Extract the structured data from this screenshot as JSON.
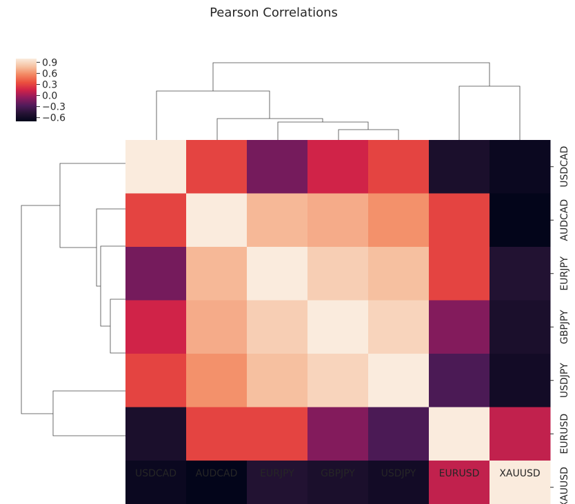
{
  "chart_data": {
    "type": "heatmap",
    "title": "Pearson Correlations",
    "row_labels": [
      "USDCAD",
      "AUDCAD",
      "EURJPY",
      "GBPJPY",
      "USDJPY",
      "EURUSD",
      "XAUUSD"
    ],
    "col_labels": [
      "USDCAD",
      "AUDCAD",
      "EURJPY",
      "GBPJPY",
      "USDJPY",
      "EURUSD",
      "XAUUSD"
    ],
    "values": [
      [
        1.0,
        0.3,
        -0.15,
        0.15,
        0.3,
        -0.55,
        -0.65
      ],
      [
        0.3,
        1.0,
        0.75,
        0.7,
        0.6,
        0.3,
        -0.7
      ],
      [
        -0.15,
        0.75,
        1.0,
        0.85,
        0.78,
        0.3,
        -0.5
      ],
      [
        0.15,
        0.7,
        0.85,
        1.0,
        0.88,
        -0.1,
        -0.55
      ],
      [
        0.3,
        0.6,
        0.78,
        0.88,
        1.0,
        -0.3,
        -0.6
      ],
      [
        -0.55,
        0.3,
        0.3,
        -0.1,
        -0.3,
        1.0,
        0.1
      ],
      [
        -0.65,
        -0.7,
        -0.5,
        -0.55,
        -0.6,
        0.1,
        1.0
      ]
    ],
    "colorbar": {
      "vmin": -0.7,
      "vmax": 1.0,
      "ticks": [
        0.9,
        0.6,
        0.3,
        0.0,
        -0.3,
        -0.6
      ],
      "tick_labels": [
        "0.9",
        "0.6",
        "0.3",
        "0.0",
        "−0.3",
        "−0.6"
      ],
      "colormap": "rocket"
    },
    "col_dendrogram": "top",
    "row_dendrogram": "left",
    "tick_label_side": "bottom-right"
  }
}
